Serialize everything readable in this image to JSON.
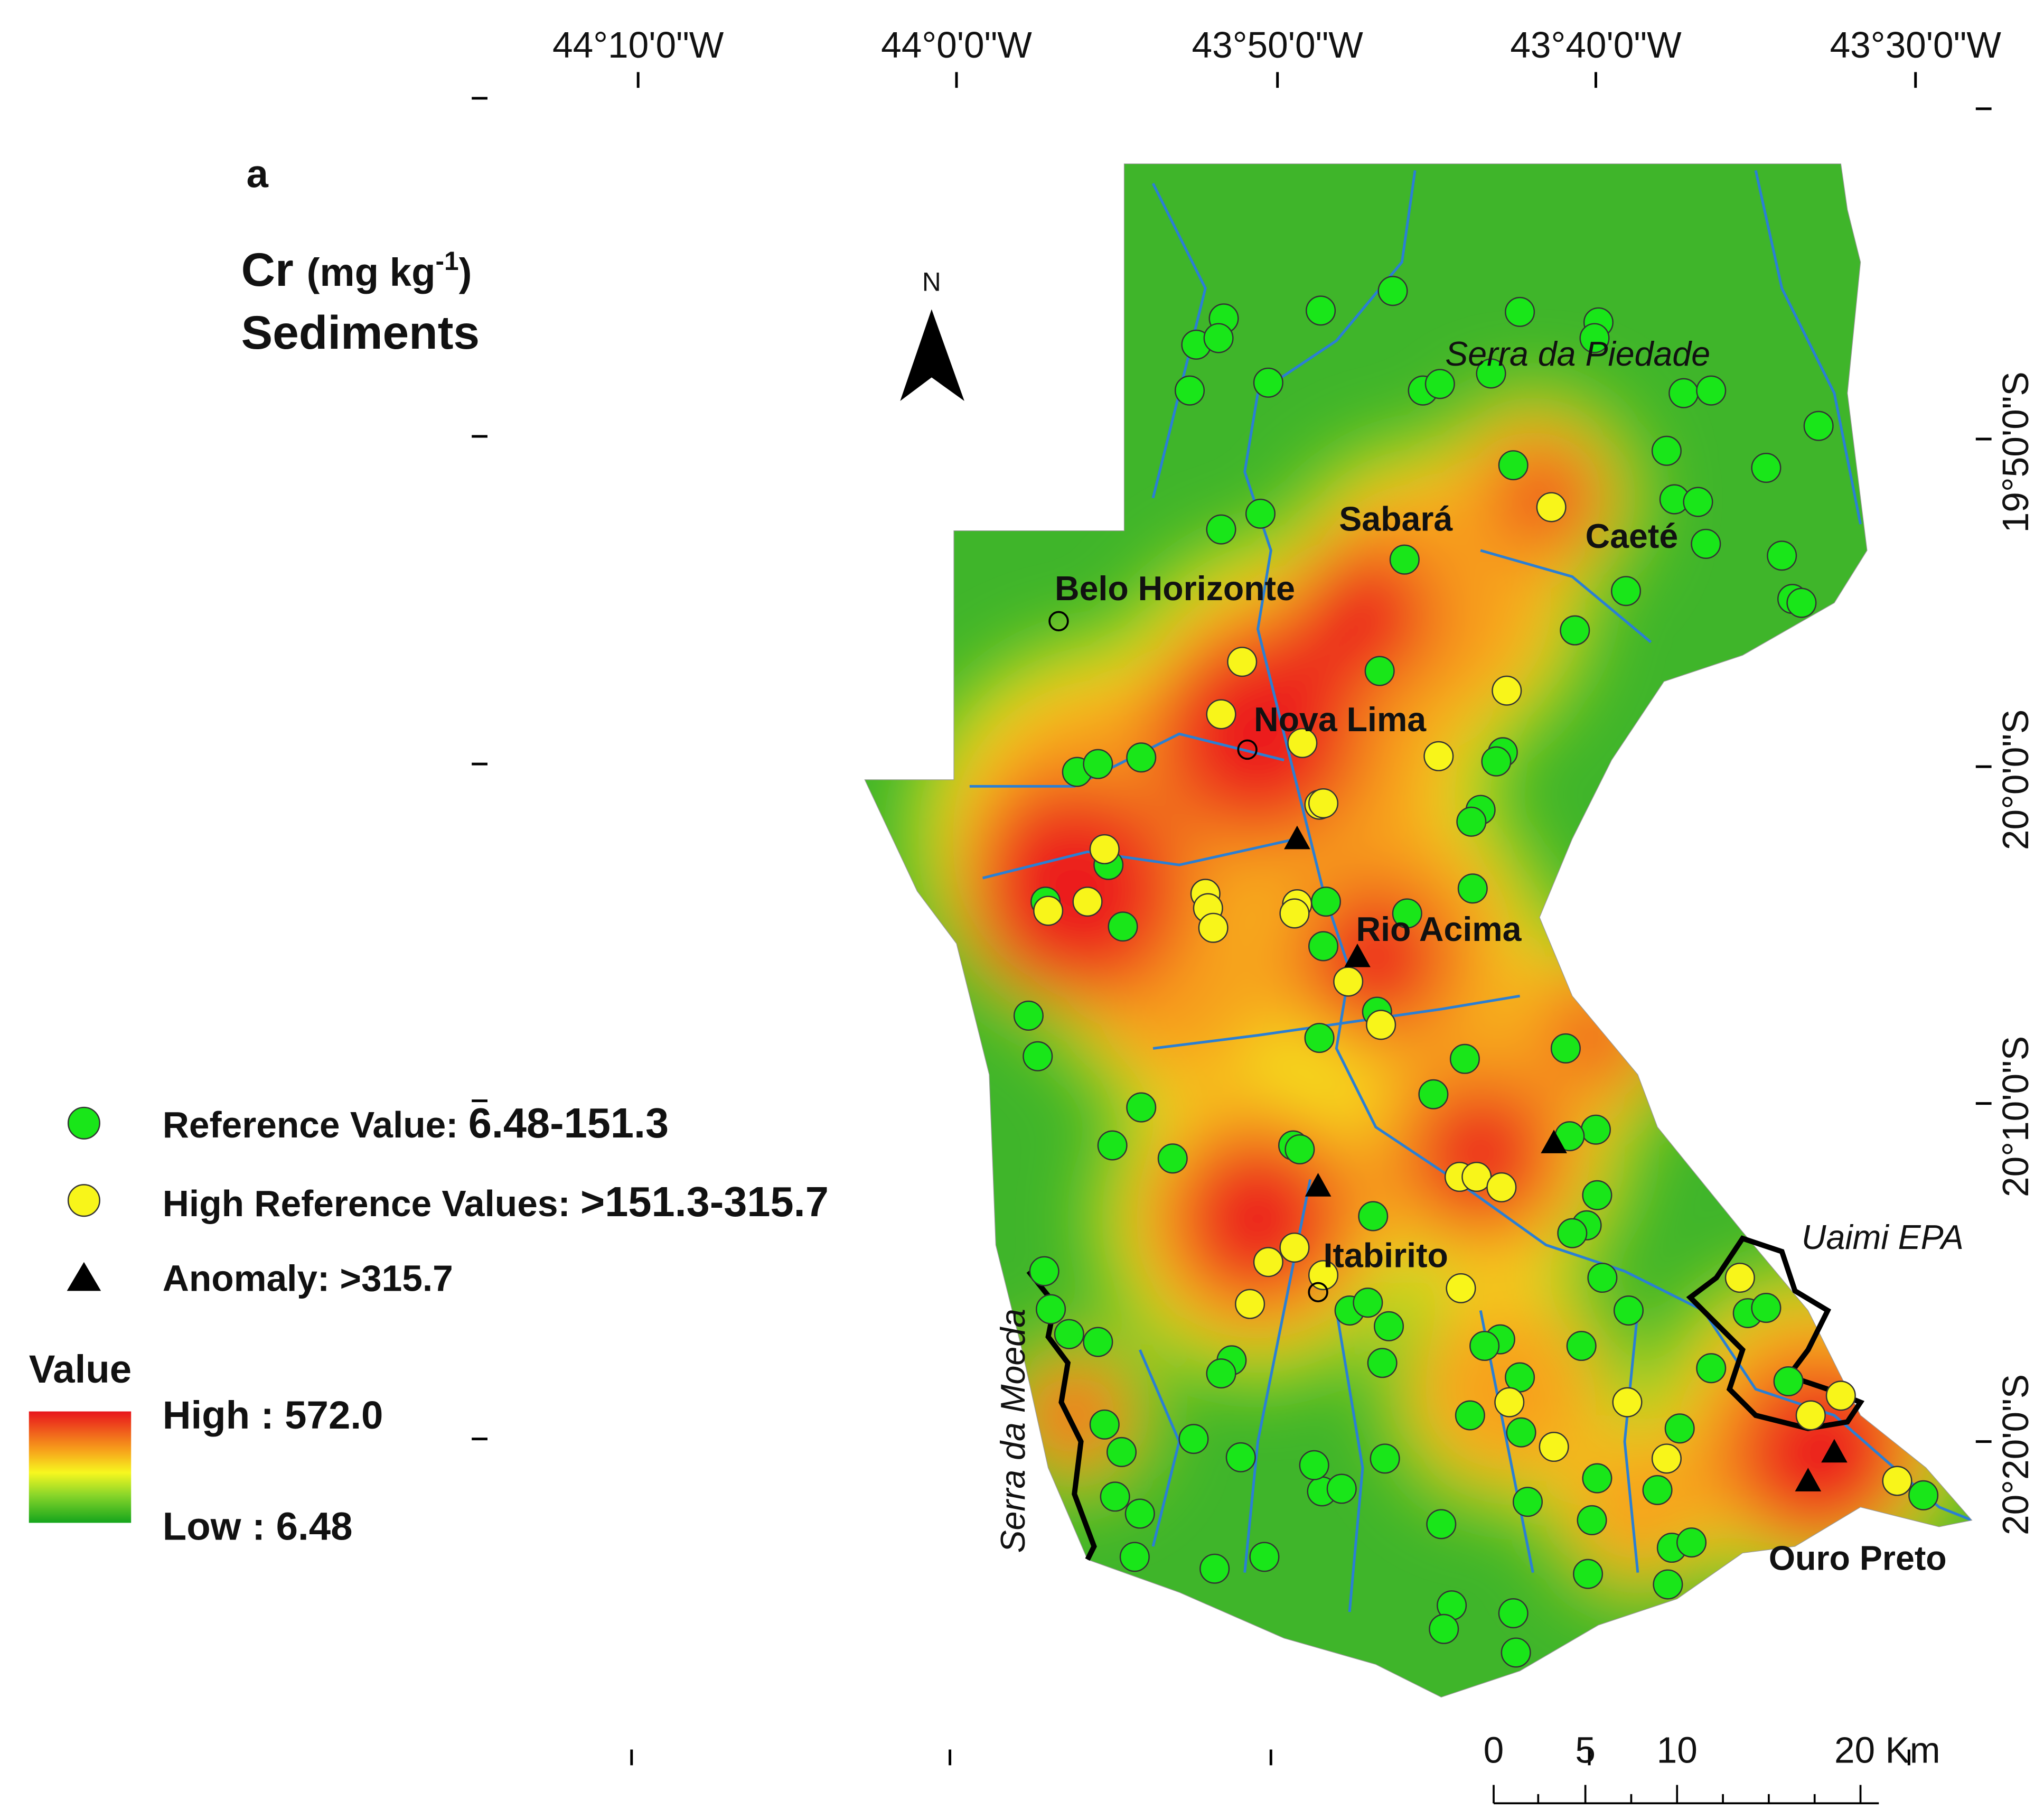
{
  "panel_label": "a",
  "title": {
    "element": "Cr",
    "unit": "(mg kg",
    "superscript": "-1",
    "unit_close": ")",
    "subtitle": "Sediments"
  },
  "longitude_labels": [
    "44°10'0\"W",
    "44°0'0\"W",
    "43°50'0\"W",
    "43°40'0\"W",
    "43°30'0\"W"
  ],
  "latitude_labels": [
    "19°50'0\"S",
    "20°0'0\"S",
    "20°10'0\"S",
    "20°20'0\"S"
  ],
  "north": "N",
  "legend": {
    "items": [
      {
        "label": "Reference Value:",
        "range": "6.48-151.3"
      },
      {
        "label": "High Reference Values:",
        "range": ">151.3-315.7"
      },
      {
        "label": "Anomaly:",
        "range": ">315.7"
      }
    ]
  },
  "color_scale": {
    "title": "Value",
    "high": "High : 572.0",
    "low": "Low : 6.48"
  },
  "places": [
    "Belo Horizonte",
    "Sabará",
    "Caeté",
    "Nova Lima",
    "Rio Acima",
    "Itabirito",
    "Ouro Preto"
  ],
  "features": [
    "Serra da Piedade",
    "Uaimi EPA",
    "Serra da Moeda"
  ],
  "scale_bar": [
    "0",
    "5",
    "10",
    "20 Km"
  ]
}
